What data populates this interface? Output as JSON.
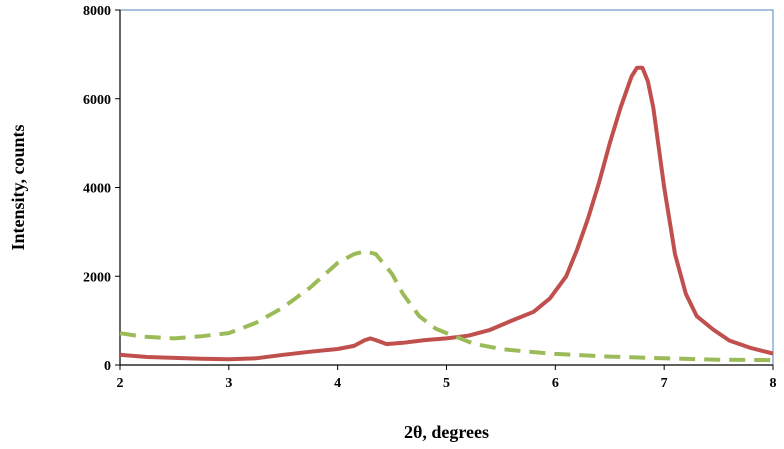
{
  "chart_data": {
    "type": "line",
    "title": "",
    "xlabel": "2θ, degrees",
    "ylabel": "Intensity, counts",
    "xlim": [
      2,
      8
    ],
    "ylim": [
      0,
      8000
    ],
    "x_ticks": [
      2,
      3,
      4,
      5,
      6,
      7,
      8
    ],
    "y_ticks": [
      0,
      2000,
      4000,
      6000,
      8000
    ],
    "grid": false,
    "legend": "none",
    "series": [
      {
        "style": "solid",
        "color": "#c0504d",
        "x": [
          2.0,
          2.25,
          2.5,
          2.75,
          3.0,
          3.25,
          3.5,
          3.75,
          4.0,
          4.15,
          4.25,
          4.3,
          4.35,
          4.45,
          4.6,
          4.8,
          5.0,
          5.2,
          5.4,
          5.6,
          5.8,
          5.95,
          6.1,
          6.2,
          6.3,
          6.4,
          6.5,
          6.6,
          6.7,
          6.75,
          6.8,
          6.85,
          6.9,
          7.0,
          7.1,
          7.2,
          7.3,
          7.45,
          7.6,
          7.8,
          8.0
        ],
        "y": [
          230,
          180,
          160,
          140,
          130,
          150,
          230,
          300,
          360,
          430,
          560,
          600,
          560,
          470,
          500,
          560,
          600,
          660,
          790,
          1000,
          1200,
          1500,
          2000,
          2600,
          3300,
          4100,
          5000,
          5800,
          6500,
          6700,
          6700,
          6400,
          5800,
          4000,
          2500,
          1600,
          1100,
          800,
          550,
          380,
          260
        ]
      },
      {
        "style": "dashed",
        "color": "#9bbb59",
        "x": [
          2.0,
          2.2,
          2.5,
          2.75,
          3.0,
          3.25,
          3.5,
          3.75,
          4.0,
          4.15,
          4.25,
          4.35,
          4.5,
          4.6,
          4.75,
          4.9,
          5.0,
          5.25,
          5.5,
          5.75,
          6.0,
          6.5,
          7.0,
          7.5,
          8.0
        ],
        "y": [
          720,
          640,
          600,
          650,
          720,
          950,
          1300,
          1750,
          2300,
          2500,
          2560,
          2500,
          2050,
          1600,
          1100,
          820,
          720,
          480,
          360,
          300,
          250,
          190,
          150,
          120,
          110
        ]
      }
    ]
  }
}
